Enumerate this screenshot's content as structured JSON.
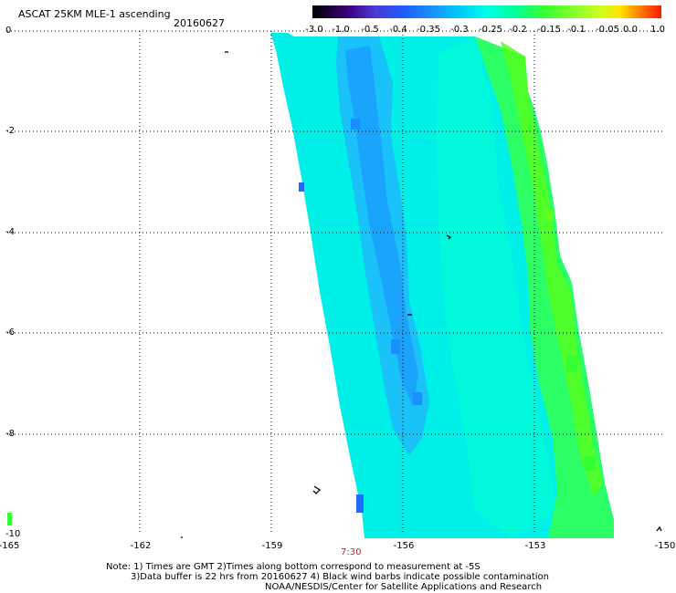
{
  "header": {
    "title": "ASCAT 25KM MLE-1 ascending",
    "date": "20160627"
  },
  "colorbar": {
    "labels": [
      "-3.0",
      "-1.0",
      "-0.5",
      "-0.4",
      "-0.35",
      "-0.3",
      "-0.25",
      "-0.2",
      "-0.15",
      "-0.1",
      "-0.05",
      "0.0",
      "1.0"
    ],
    "colors": [
      "#000000",
      "#3a007a",
      "#4a3bd4",
      "#1f5cff",
      "#1a8fff",
      "#00c8ff",
      "#00ffe6",
      "#00ff9a",
      "#33ff33",
      "#7dff2e",
      "#c6ff1f",
      "#ffe600",
      "#ff7a00",
      "#ff1a00"
    ]
  },
  "axes": {
    "y_labels": [
      "0",
      "-2",
      "-4",
      "-6",
      "-8",
      "-10"
    ],
    "x_labels": [
      "-165",
      "-162",
      "-159",
      "-156",
      "-153",
      "-150"
    ],
    "lon_range": [
      -165,
      -150
    ],
    "lat_range": [
      -10,
      0
    ]
  },
  "time_label": "7:30",
  "notes": {
    "line1": "Note: 1) Times are GMT 2)Times along bottom correspond to measurement at -5S",
    "line2": "3)Data buffer is 22 hrs from 20160627 4) Black wind barbs indicate possible contamination",
    "line3": "NOAA/NESDIS/Center for Satellite Applications and Research"
  },
  "swath": {
    "description_colors": {
      "low": "#1a6cff",
      "mid": "#00e5ff",
      "high": "#22ff66",
      "edge": "#55ff22"
    }
  }
}
